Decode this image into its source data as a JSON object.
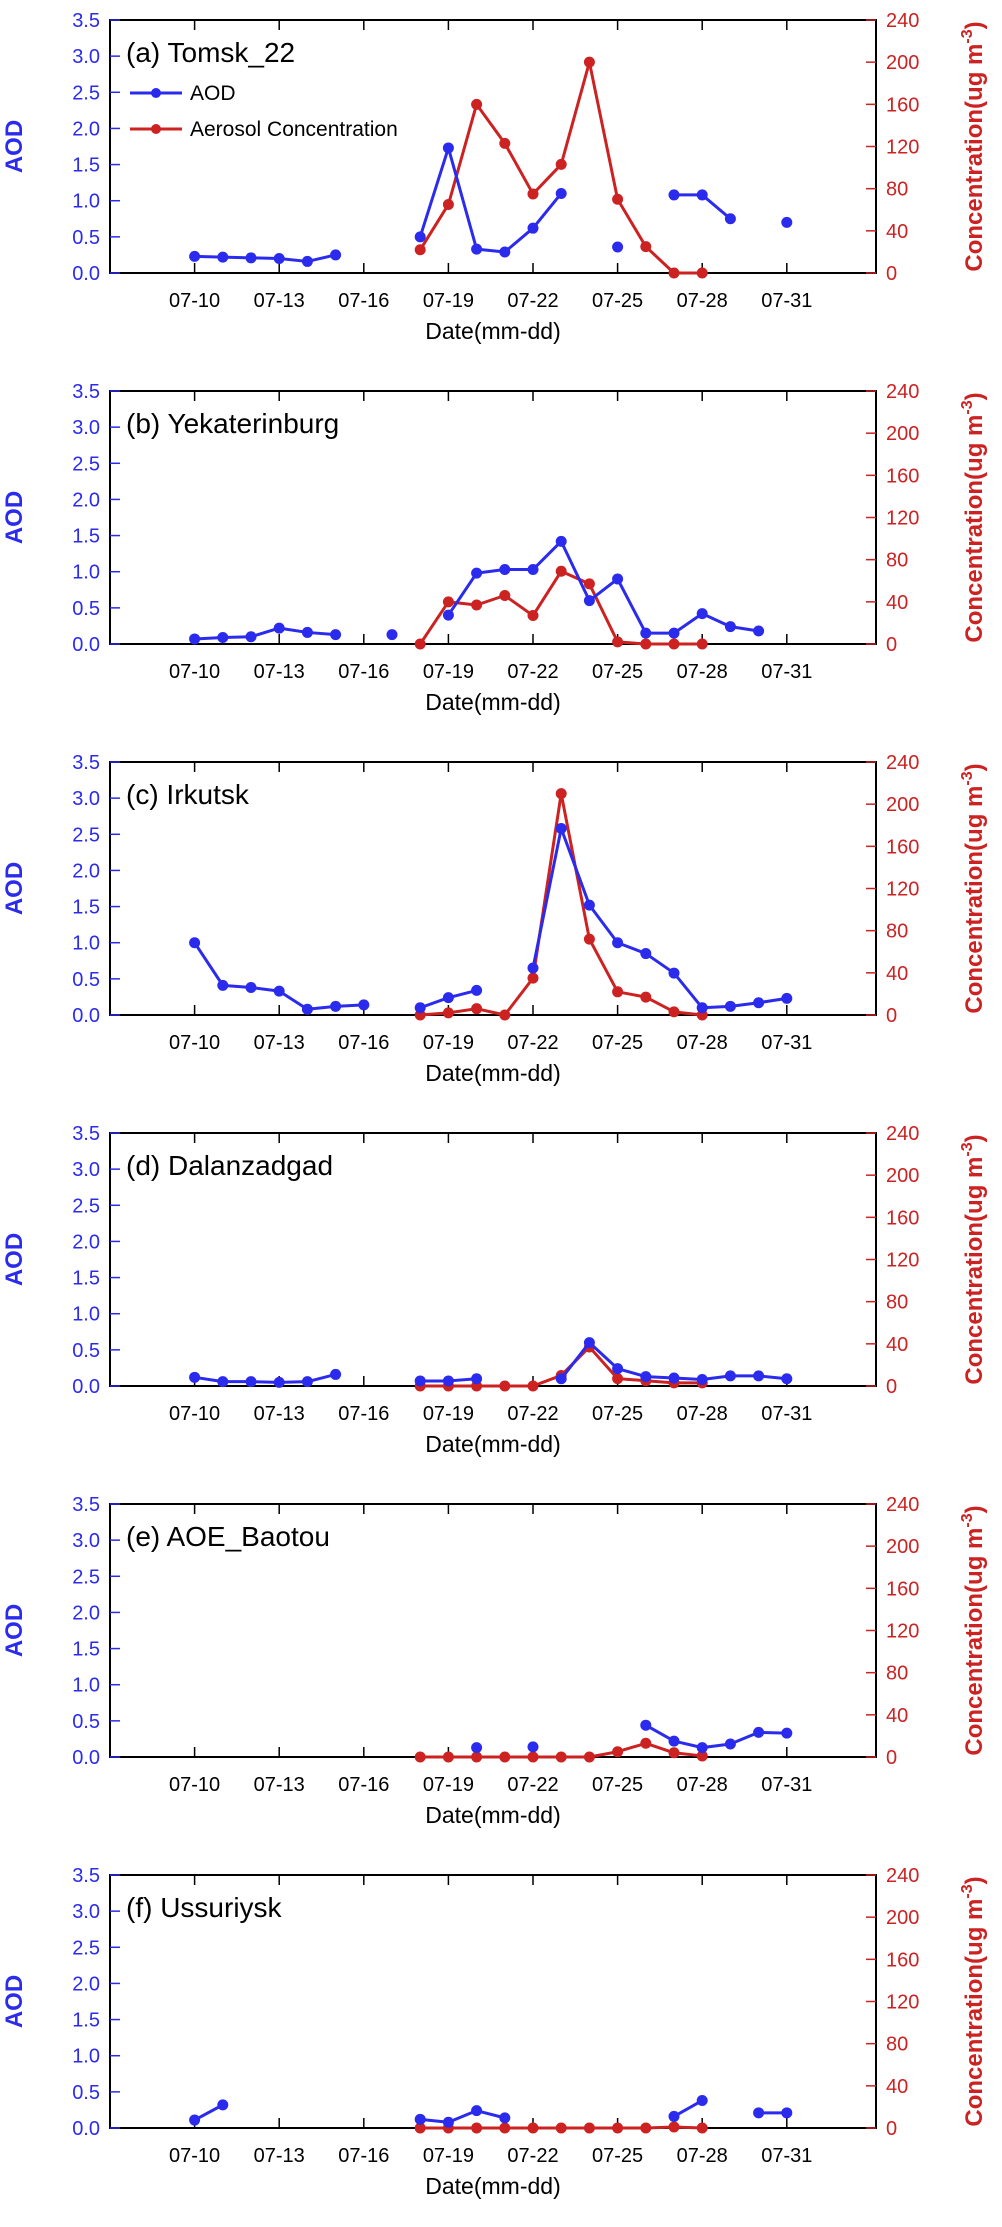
{
  "colors": {
    "aod": "#2b2bee",
    "concentration": "#cc2222",
    "axis": "#000000"
  },
  "chart_data": [
    {
      "type": "line",
      "panel_label": "(a) Tomsk_22",
      "xlabel": "Date(mm-dd)",
      "ylabel_left": "AOD",
      "ylabel_right_main": "Concentration(ug m",
      "ylabel_right_sup": "-3",
      "ylabel_right_close": ")",
      "x_ticks": [
        "07-10",
        "07-13",
        "07-16",
        "07-19",
        "07-22",
        "07-25",
        "07-28",
        "07-31"
      ],
      "ylim_left": [
        0,
        3.5
      ],
      "ylim_right": [
        0,
        240
      ],
      "y_ticks_left": [
        "0.0",
        "0.5",
        "1.0",
        "1.5",
        "2.0",
        "2.5",
        "3.0",
        "3.5"
      ],
      "y_ticks_right": [
        "0",
        "40",
        "80",
        "120",
        "160",
        "200",
        "240"
      ],
      "legend": [
        "AOD",
        "Aerosol Concentration"
      ],
      "series": [
        {
          "axis": "left",
          "x": [
            "07-10",
            "07-11",
            "07-12",
            "07-13",
            "07-14",
            "07-15",
            "07-18",
            "07-19",
            "07-20",
            "07-21",
            "07-22",
            "07-23",
            "07-25",
            "07-27",
            "07-28",
            "07-29",
            "07-31"
          ],
          "values": [
            0.23,
            0.22,
            0.21,
            0.2,
            0.16,
            0.25,
            0.5,
            1.73,
            0.33,
            0.29,
            0.62,
            1.1,
            0.36,
            1.08,
            1.08,
            0.75,
            0.7
          ]
        },
        {
          "axis": "right",
          "x": [
            "07-18",
            "07-19",
            "07-20",
            "07-21",
            "07-22",
            "07-23",
            "07-24",
            "07-25",
            "07-26",
            "07-27",
            "07-28"
          ],
          "values": [
            22,
            65,
            160,
            123,
            75,
            103,
            200,
            70,
            25,
            0,
            0
          ]
        }
      ]
    },
    {
      "type": "line",
      "panel_label": "(b) Yekaterinburg",
      "xlabel": "Date(mm-dd)",
      "ylabel_left": "AOD",
      "ylabel_right_main": "Concentration(ug m",
      "ylabel_right_sup": "-3",
      "ylabel_right_close": ")",
      "x_ticks": [
        "07-10",
        "07-13",
        "07-16",
        "07-19",
        "07-22",
        "07-25",
        "07-28",
        "07-31"
      ],
      "ylim_left": [
        0,
        3.5
      ],
      "ylim_right": [
        0,
        240
      ],
      "y_ticks_left": [
        "0.0",
        "0.5",
        "1.0",
        "1.5",
        "2.0",
        "2.5",
        "3.0",
        "3.5"
      ],
      "y_ticks_right": [
        "0",
        "40",
        "80",
        "120",
        "160",
        "200",
        "240"
      ],
      "series": [
        {
          "axis": "left",
          "x": [
            "07-10",
            "07-11",
            "07-12",
            "07-13",
            "07-14",
            "07-15",
            "07-17",
            "07-19",
            "07-20",
            "07-21",
            "07-22",
            "07-23",
            "07-24",
            "07-25",
            "07-26",
            "07-27",
            "07-28",
            "07-29",
            "07-30"
          ],
          "values": [
            0.07,
            0.09,
            0.1,
            0.22,
            0.16,
            0.13,
            0.13,
            0.4,
            0.98,
            1.03,
            1.03,
            1.42,
            0.6,
            0.9,
            0.15,
            0.15,
            0.42,
            0.24,
            0.18
          ]
        },
        {
          "axis": "right",
          "x": [
            "07-18",
            "07-19",
            "07-20",
            "07-21",
            "07-22",
            "07-23",
            "07-24",
            "07-25",
            "07-26",
            "07-27",
            "07-28"
          ],
          "values": [
            0,
            40,
            37,
            46,
            27,
            69,
            57,
            2,
            0,
            0,
            0
          ]
        }
      ]
    },
    {
      "type": "line",
      "panel_label": "(c) Irkutsk",
      "xlabel": "Date(mm-dd)",
      "ylabel_left": "AOD",
      "ylabel_right_main": "Concentration(ug m",
      "ylabel_right_sup": "-3",
      "ylabel_right_close": ")",
      "x_ticks": [
        "07-10",
        "07-13",
        "07-16",
        "07-19",
        "07-22",
        "07-25",
        "07-28",
        "07-31"
      ],
      "ylim_left": [
        0,
        3.5
      ],
      "ylim_right": [
        0,
        240
      ],
      "y_ticks_left": [
        "0.0",
        "0.5",
        "1.0",
        "1.5",
        "2.0",
        "2.5",
        "3.0",
        "3.5"
      ],
      "y_ticks_right": [
        "0",
        "40",
        "80",
        "120",
        "160",
        "200",
        "240"
      ],
      "series": [
        {
          "axis": "left",
          "x": [
            "07-10",
            "07-11",
            "07-12",
            "07-13",
            "07-14",
            "07-15",
            "07-16",
            "07-18",
            "07-19",
            "07-20",
            "07-22",
            "07-23",
            "07-24",
            "07-25",
            "07-26",
            "07-27",
            "07-28",
            "07-29",
            "07-30",
            "07-31"
          ],
          "values": [
            1.0,
            0.41,
            0.38,
            0.33,
            0.08,
            0.12,
            0.14,
            0.1,
            0.24,
            0.34,
            0.65,
            2.58,
            1.52,
            1.0,
            0.85,
            0.58,
            0.1,
            0.12,
            0.17,
            0.23
          ]
        },
        {
          "axis": "right",
          "x": [
            "07-18",
            "07-19",
            "07-20",
            "07-21",
            "07-22",
            "07-23",
            "07-24",
            "07-25",
            "07-26",
            "07-27",
            "07-28"
          ],
          "values": [
            0,
            2,
            6,
            0,
            35,
            210,
            72,
            22,
            17,
            3,
            0
          ]
        }
      ]
    },
    {
      "type": "line",
      "panel_label": "(d) Dalanzadgad",
      "xlabel": "Date(mm-dd)",
      "ylabel_left": "AOD",
      "ylabel_right_main": "Concentration(ug m",
      "ylabel_right_sup": "-3",
      "ylabel_right_close": ")",
      "x_ticks": [
        "07-10",
        "07-13",
        "07-16",
        "07-19",
        "07-22",
        "07-25",
        "07-28",
        "07-31"
      ],
      "ylim_left": [
        0,
        3.5
      ],
      "ylim_right": [
        0,
        240
      ],
      "y_ticks_left": [
        "0.0",
        "0.5",
        "1.0",
        "1.5",
        "2.0",
        "2.5",
        "3.0",
        "3.5"
      ],
      "y_ticks_right": [
        "0",
        "40",
        "80",
        "120",
        "160",
        "200",
        "240"
      ],
      "series": [
        {
          "axis": "left",
          "x": [
            "07-10",
            "07-11",
            "07-12",
            "07-13",
            "07-14",
            "07-15",
            "07-18",
            "07-19",
            "07-20",
            "07-23",
            "07-24",
            "07-25",
            "07-26",
            "07-27",
            "07-28",
            "07-29",
            "07-30",
            "07-31"
          ],
          "values": [
            0.12,
            0.06,
            0.06,
            0.05,
            0.06,
            0.16,
            0.07,
            0.07,
            0.1,
            0.1,
            0.6,
            0.24,
            0.13,
            0.11,
            0.09,
            0.14,
            0.14,
            0.1
          ]
        },
        {
          "axis": "right",
          "x": [
            "07-18",
            "07-19",
            "07-20",
            "07-21",
            "07-22",
            "07-23",
            "07-24",
            "07-25",
            "07-26",
            "07-27",
            "07-28"
          ],
          "values": [
            0,
            0,
            0,
            0,
            0,
            10,
            37,
            7,
            5,
            3,
            3
          ]
        }
      ]
    },
    {
      "type": "line",
      "panel_label": "(e) AOE_Baotou",
      "xlabel": "Date(mm-dd)",
      "ylabel_left": "AOD",
      "ylabel_right_main": "Concentration(ug m",
      "ylabel_right_sup": "-3",
      "ylabel_right_close": ")",
      "x_ticks": [
        "07-10",
        "07-13",
        "07-16",
        "07-19",
        "07-22",
        "07-25",
        "07-28",
        "07-31"
      ],
      "ylim_left": [
        0,
        3.5
      ],
      "ylim_right": [
        0,
        240
      ],
      "y_ticks_left": [
        "0.0",
        "0.5",
        "1.0",
        "1.5",
        "2.0",
        "2.5",
        "3.0",
        "3.5"
      ],
      "y_ticks_right": [
        "0",
        "40",
        "80",
        "120",
        "160",
        "200",
        "240"
      ],
      "series": [
        {
          "axis": "left",
          "x": [
            "07-20",
            "07-22",
            "07-26",
            "07-27",
            "07-28",
            "07-29",
            "07-30",
            "07-31"
          ],
          "values": [
            0.13,
            0.14,
            0.44,
            0.22,
            0.13,
            0.18,
            0.34,
            0.33
          ]
        },
        {
          "axis": "right",
          "x": [
            "07-18",
            "07-19",
            "07-20",
            "07-21",
            "07-22",
            "07-23",
            "07-24",
            "07-25",
            "07-26",
            "07-27",
            "07-28"
          ],
          "values": [
            0,
            0,
            0,
            0,
            0,
            0,
            0,
            5,
            13,
            4,
            1
          ]
        }
      ]
    },
    {
      "type": "line",
      "panel_label": "(f) Ussuriysk",
      "xlabel": "Date(mm-dd)",
      "ylabel_left": "AOD",
      "ylabel_right_main": "Concentration(ug m",
      "ylabel_right_sup": "-3",
      "ylabel_right_close": ")",
      "x_ticks": [
        "07-10",
        "07-13",
        "07-16",
        "07-19",
        "07-22",
        "07-25",
        "07-28",
        "07-31"
      ],
      "ylim_left": [
        0,
        3.5
      ],
      "ylim_right": [
        0,
        240
      ],
      "y_ticks_left": [
        "0.0",
        "0.5",
        "1.0",
        "1.5",
        "2.0",
        "2.5",
        "3.0",
        "3.5"
      ],
      "y_ticks_right": [
        "0",
        "40",
        "80",
        "120",
        "160",
        "200",
        "240"
      ],
      "series": [
        {
          "axis": "left",
          "x": [
            "07-10",
            "07-11",
            "07-18",
            "07-19",
            "07-20",
            "07-21",
            "07-27",
            "07-28",
            "07-30",
            "07-31"
          ],
          "values": [
            0.11,
            0.32,
            0.12,
            0.08,
            0.24,
            0.14,
            0.16,
            0.38,
            0.21,
            0.21
          ]
        },
        {
          "axis": "right",
          "x": [
            "07-18",
            "07-19",
            "07-20",
            "07-21",
            "07-22",
            "07-23",
            "07-24",
            "07-25",
            "07-26",
            "07-27",
            "07-28"
          ],
          "values": [
            0,
            0,
            0,
            0,
            0,
            0,
            0,
            0,
            0,
            1,
            0
          ]
        }
      ]
    }
  ]
}
